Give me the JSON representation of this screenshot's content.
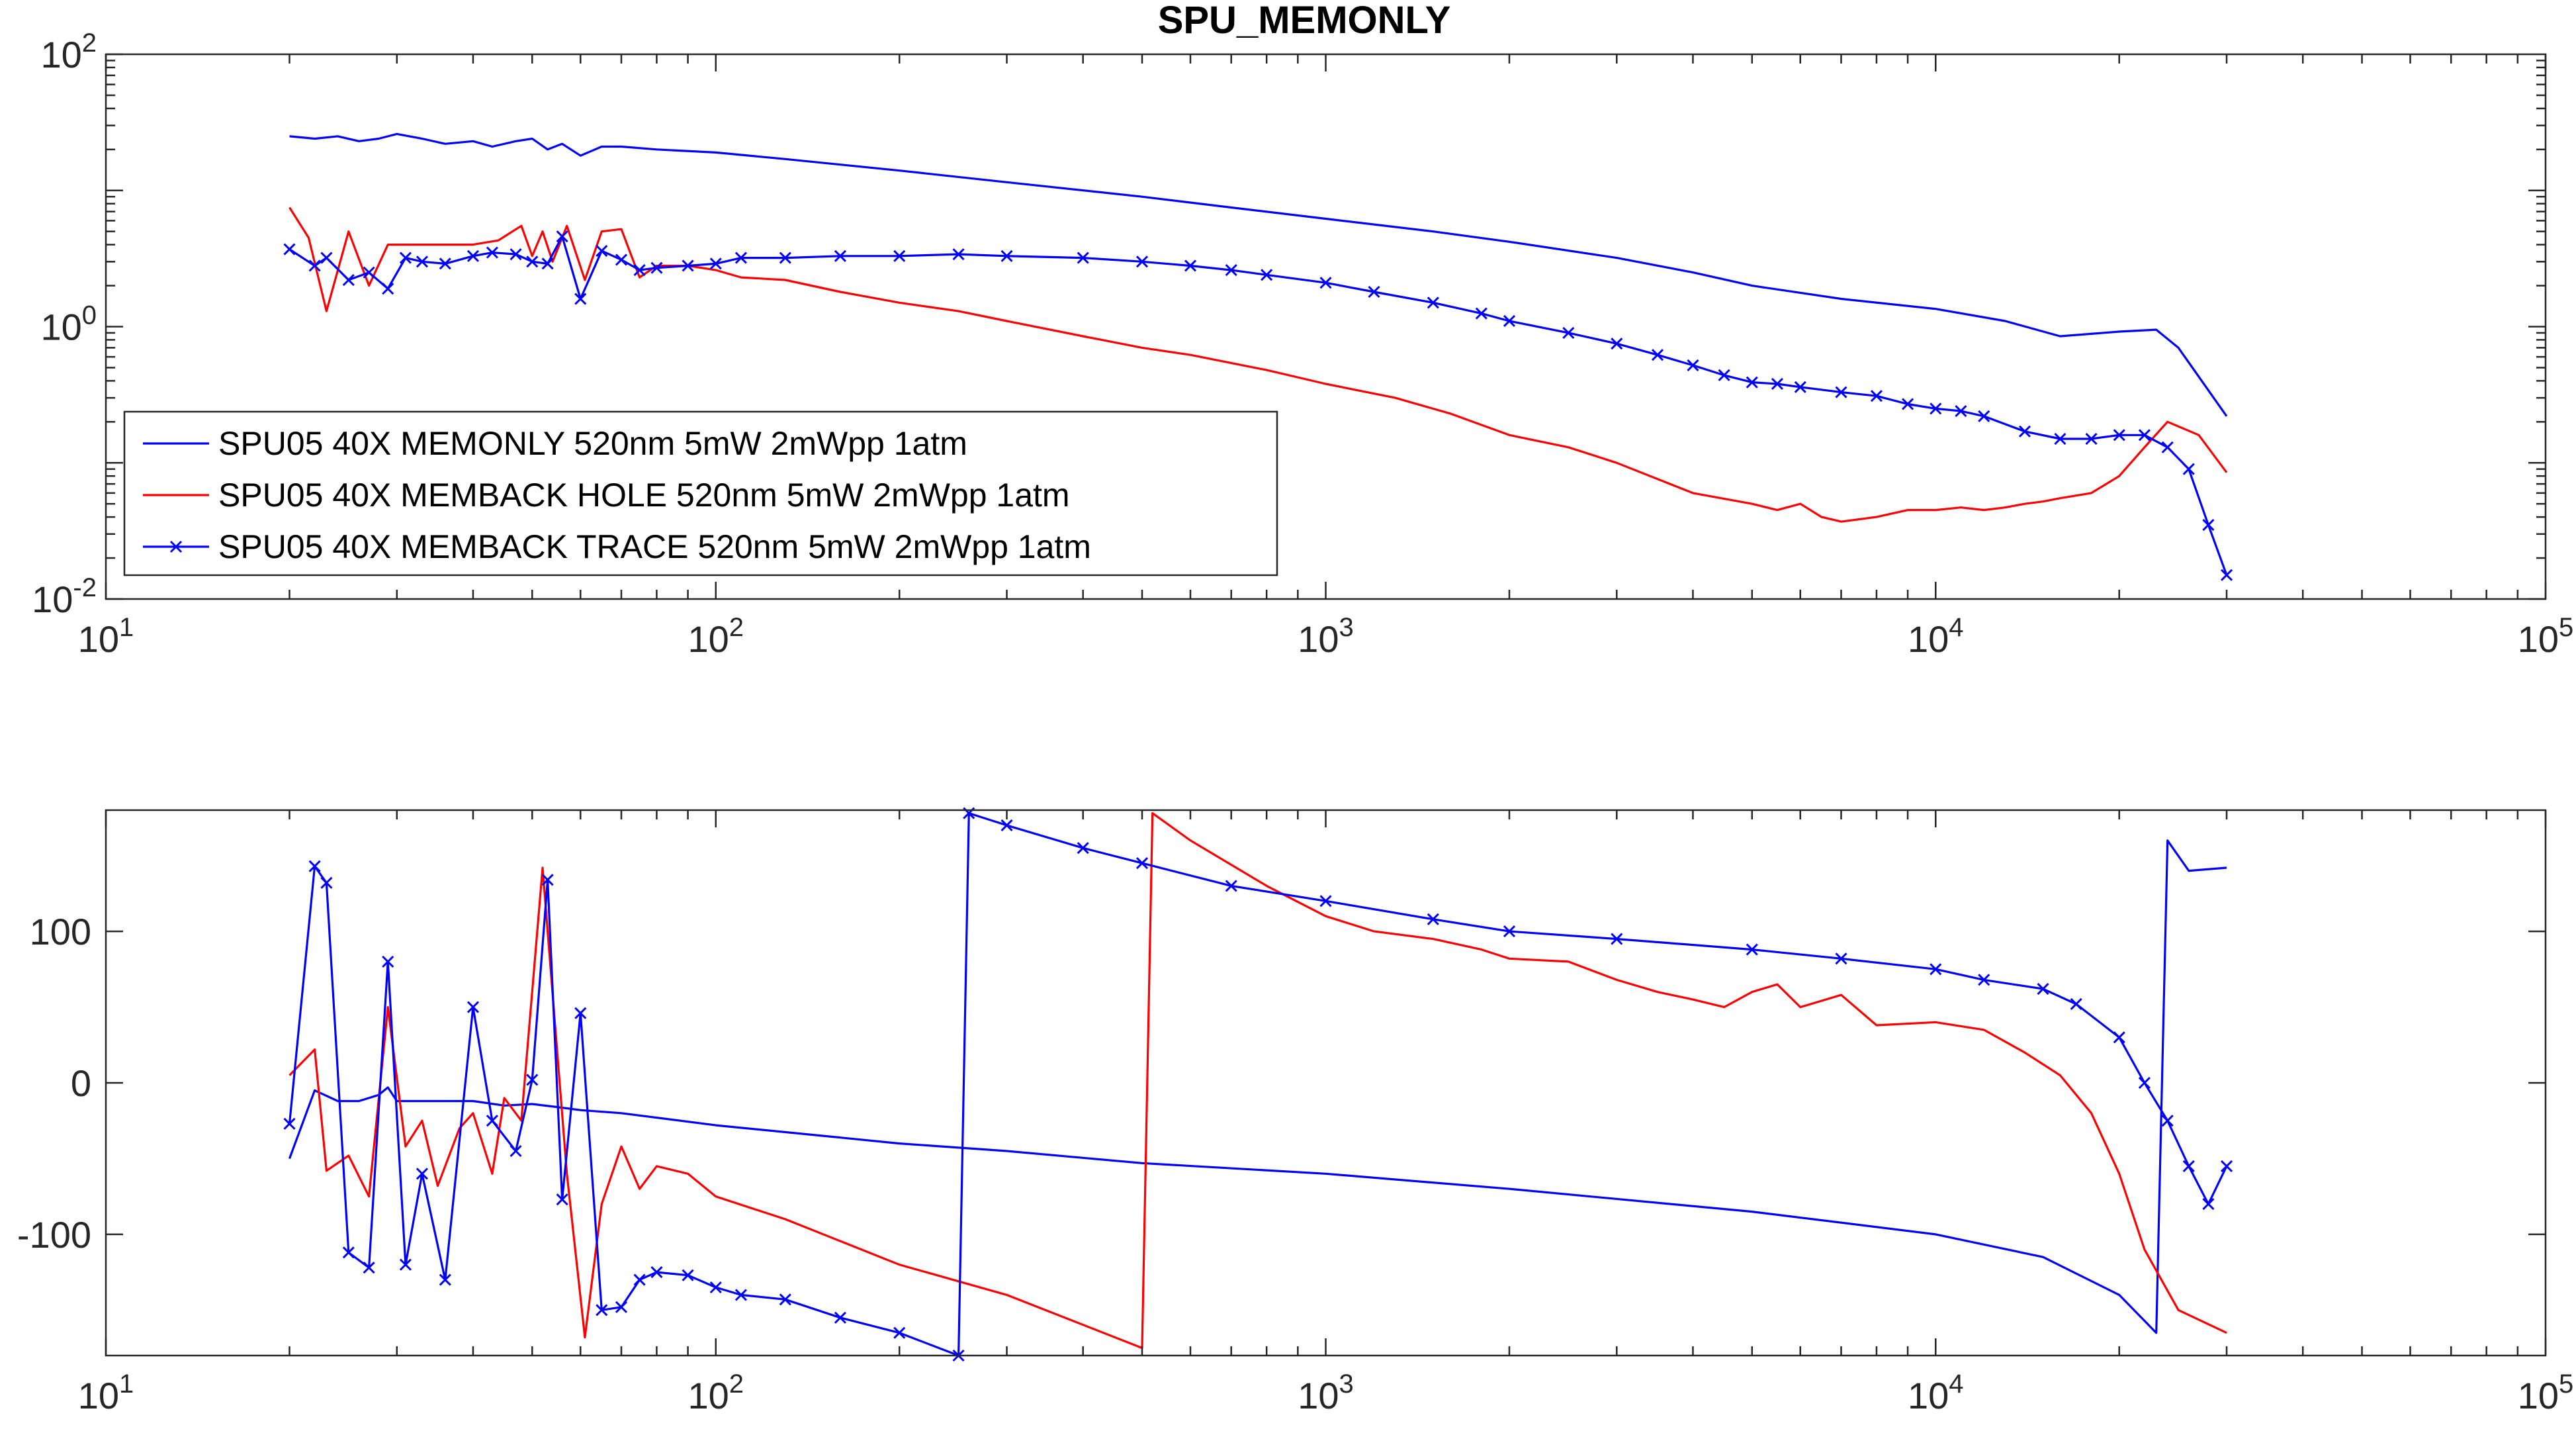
{
  "figure": {
    "title": "SPU_MEMONLY"
  },
  "chart_data": [
    {
      "type": "line",
      "title": "SPU_MEMONLY",
      "xscale": "log",
      "yscale": "log",
      "xlim": [
        10,
        100000
      ],
      "ylim": [
        0.01,
        100
      ],
      "xticks": [
        10,
        100,
        1000,
        10000,
        100000
      ],
      "xtick_labels": [
        [
          "10",
          "1"
        ],
        [
          "10",
          "2"
        ],
        [
          "10",
          "3"
        ],
        [
          "10",
          "4"
        ],
        [
          "10",
          "5"
        ]
      ],
      "yticks": [
        0.01,
        1,
        100
      ],
      "ytick_labels": [
        [
          "10",
          "-2"
        ],
        [
          "10",
          "0"
        ],
        [
          "10",
          "2"
        ]
      ],
      "grid": false,
      "legend_position": "lower-left",
      "series": [
        {
          "name": "SPU05 40X MEMONLY 520nm 5mW 2mWpp 1atm",
          "color": "#0000ff",
          "marker": "none",
          "x": [
            20,
            22,
            24,
            26,
            28,
            30,
            33,
            36,
            40,
            43,
            47,
            50,
            53,
            56,
            60,
            65,
            70,
            80,
            100,
            130,
            200,
            300,
            500,
            700,
            1000,
            1500,
            2000,
            3000,
            4000,
            5000,
            7000,
            10000,
            13000,
            16000,
            20000,
            23000,
            25000,
            30000
          ],
          "y": [
            25,
            24,
            25,
            23,
            24,
            26,
            24,
            22,
            23,
            21,
            23,
            24,
            20,
            22,
            18,
            21,
            21,
            20,
            19,
            17,
            14,
            11.5,
            9,
            7.5,
            6.2,
            5,
            4.2,
            3.2,
            2.5,
            2,
            1.6,
            1.35,
            1.1,
            0.85,
            0.92,
            0.95,
            0.7,
            0.22
          ]
        },
        {
          "name": "SPU05 40X MEMBACK HOLE 520nm 5mW 2mWpp 1atm",
          "color": "#ff0000",
          "marker": "none",
          "x": [
            20,
            21.5,
            23,
            25,
            27,
            29,
            31,
            35,
            40,
            44,
            48,
            50,
            52,
            54,
            57,
            61,
            65,
            70,
            75,
            80,
            90,
            100,
            110,
            130,
            160,
            200,
            250,
            300,
            400,
            500,
            600,
            800,
            1000,
            1300,
            1600,
            2000,
            2500,
            3000,
            4000,
            5000,
            5500,
            6000,
            6500,
            7000,
            8000,
            9000,
            10000,
            11000,
            12000,
            13000,
            14000,
            15000,
            16000,
            18000,
            20000,
            22000,
            24000,
            27000,
            30000
          ],
          "y": [
            7.5,
            4.5,
            1.3,
            5,
            2,
            4,
            4,
            4,
            4,
            4.3,
            5.5,
            3.3,
            5,
            3,
            5.5,
            2.2,
            5,
            5.2,
            2.3,
            2.8,
            2.8,
            2.6,
            2.3,
            2.2,
            1.8,
            1.5,
            1.3,
            1.1,
            0.85,
            0.7,
            0.62,
            0.48,
            0.38,
            0.3,
            0.23,
            0.16,
            0.13,
            0.1,
            0.06,
            0.05,
            0.045,
            0.05,
            0.04,
            0.037,
            0.04,
            0.045,
            0.045,
            0.047,
            0.045,
            0.047,
            0.05,
            0.052,
            0.055,
            0.06,
            0.08,
            0.13,
            0.2,
            0.16,
            0.085
          ]
        },
        {
          "name": "SPU05 40X MEMBACK TRACE 520nm 5mW 2mWpp 1atm",
          "color": "#0000ff",
          "marker": "x",
          "x": [
            20,
            22,
            23,
            25,
            27,
            29,
            31,
            33,
            36,
            40,
            43,
            47,
            50,
            53,
            56,
            60,
            65,
            70,
            75,
            80,
            90,
            100,
            110,
            130,
            160,
            200,
            250,
            300,
            400,
            500,
            600,
            700,
            800,
            1000,
            1200,
            1500,
            1800,
            2000,
            2500,
            3000,
            3500,
            4000,
            4500,
            5000,
            5500,
            6000,
            7000,
            8000,
            9000,
            10000,
            11000,
            12000,
            14000,
            16000,
            18000,
            20000,
            22000,
            24000,
            26000,
            28000,
            30000
          ],
          "y": [
            3.7,
            2.8,
            3.2,
            2.2,
            2.5,
            1.9,
            3.2,
            3,
            2.9,
            3.3,
            3.5,
            3.4,
            3,
            2.9,
            4.6,
            1.6,
            3.6,
            3.1,
            2.6,
            2.7,
            2.8,
            2.9,
            3.2,
            3.2,
            3.3,
            3.3,
            3.4,
            3.3,
            3.2,
            3,
            2.8,
            2.6,
            2.4,
            2.1,
            1.8,
            1.5,
            1.25,
            1.1,
            0.9,
            0.75,
            0.62,
            0.52,
            0.44,
            0.39,
            0.38,
            0.36,
            0.33,
            0.31,
            0.27,
            0.25,
            0.24,
            0.22,
            0.17,
            0.15,
            0.15,
            0.16,
            0.16,
            0.13,
            0.09,
            0.035,
            0.015
          ]
        }
      ]
    },
    {
      "type": "line",
      "xscale": "log",
      "xlim": [
        10,
        100000
      ],
      "ylim": [
        -180,
        180
      ],
      "xticks": [
        10,
        100,
        1000,
        10000,
        100000
      ],
      "xtick_labels": [
        [
          "10",
          "1"
        ],
        [
          "10",
          "2"
        ],
        [
          "10",
          "3"
        ],
        [
          "10",
          "4"
        ],
        [
          "10",
          "5"
        ]
      ],
      "yticks": [
        -100,
        0,
        100
      ],
      "ytick_labels": [
        "-100",
        "0",
        "100"
      ],
      "grid": false,
      "series": [
        {
          "name": "SPU05 40X MEMONLY 520nm 5mW 2mWpp 1atm",
          "color": "#0000ff",
          "marker": "none",
          "x": [
            20,
            22,
            24,
            26,
            28,
            29,
            30,
            32,
            36,
            40,
            45,
            50,
            55,
            60,
            70,
            100,
            150,
            200,
            300,
            500,
            1000,
            2000,
            5000,
            10000,
            15000,
            20000,
            23000,
            24000,
            26000,
            30000
          ],
          "y": [
            -50,
            -5,
            -12,
            -12,
            -8,
            -3,
            -12,
            -12,
            -12,
            -12,
            -15,
            -14,
            -16,
            -18,
            -20,
            -28,
            -35,
            -40,
            -45,
            -53,
            -60,
            -70,
            -85,
            -100,
            -115,
            -140,
            -165,
            160,
            140,
            142
          ]
        },
        {
          "name": "SPU05 40X MEMBACK HOLE 520nm 5mW 2mWpp 1atm",
          "color": "#ff0000",
          "marker": "none",
          "x": [
            20,
            22,
            23,
            25,
            27,
            29,
            31,
            33,
            35,
            38,
            40,
            43,
            45,
            48,
            52,
            57,
            61,
            65,
            70,
            75,
            80,
            90,
            100,
            130,
            200,
            300,
            500,
            520,
            600,
            800,
            1000,
            1200,
            1500,
            1800,
            2000,
            2500,
            3000,
            3500,
            4000,
            4500,
            5000,
            5500,
            6000,
            7000,
            8000,
            10000,
            12000,
            14000,
            16000,
            18000,
            20000,
            22000,
            25000,
            30000
          ],
          "y": [
            5,
            22,
            -58,
            -48,
            -75,
            50,
            -42,
            -25,
            -68,
            -30,
            -20,
            -60,
            -10,
            -25,
            142,
            -60,
            -168,
            -80,
            -42,
            -70,
            -55,
            -60,
            -75,
            -90,
            -120,
            -140,
            -175,
            178,
            160,
            130,
            110,
            100,
            95,
            88,
            82,
            80,
            68,
            60,
            55,
            50,
            60,
            65,
            50,
            58,
            38,
            40,
            35,
            20,
            5,
            -20,
            -60,
            -110,
            -150,
            -165
          ]
        },
        {
          "name": "SPU05 40X MEMBACK TRACE 520nm 5mW 2mWpp 1atm",
          "color": "#0000ff",
          "marker": "x",
          "x": [
            20,
            22,
            23,
            25,
            27,
            29,
            31,
            33,
            36,
            40,
            43,
            47,
            50,
            53,
            56,
            60,
            65,
            70,
            75,
            80,
            90,
            100,
            110,
            130,
            160,
            200,
            250,
            260,
            300,
            400,
            500,
            700,
            1000,
            1500,
            2000,
            3000,
            5000,
            7000,
            10000,
            12000,
            15000,
            17000,
            20000,
            22000,
            24000,
            26000,
            28000,
            30000
          ],
          "y": [
            -27,
            143,
            132,
            -112,
            -122,
            80,
            -120,
            -60,
            -130,
            50,
            -25,
            -45,
            2,
            134,
            -77,
            46,
            -150,
            -148,
            -130,
            -125,
            -127,
            -135,
            -140,
            -143,
            -155,
            -165,
            -180,
            178,
            170,
            155,
            145,
            130,
            120,
            108,
            100,
            95,
            88,
            82,
            75,
            68,
            62,
            52,
            30,
            0,
            -25,
            -55,
            -80,
            -55
          ]
        }
      ]
    }
  ]
}
